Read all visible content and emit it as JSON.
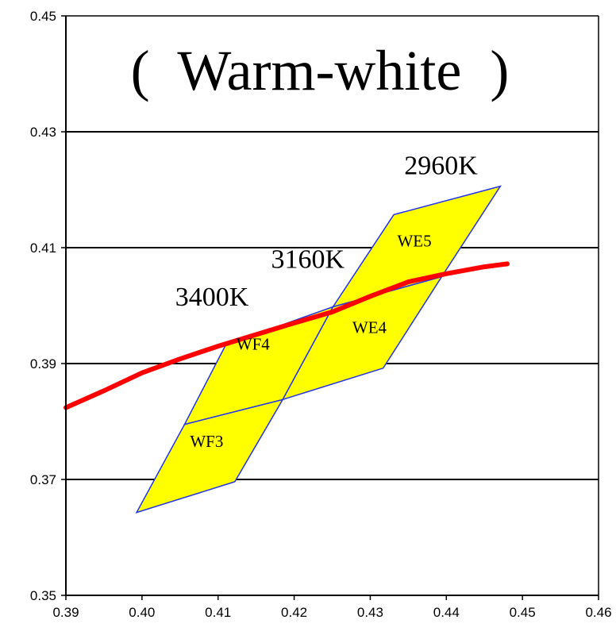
{
  "chart_data": {
    "type": "scatter",
    "title": "(  Warm-white  )",
    "xlabel": "",
    "ylabel": "",
    "xlim": [
      0.39,
      0.46
    ],
    "ylim": [
      0.35,
      0.45
    ],
    "x_ticks": [
      "0.39",
      "0.40",
      "0.41",
      "0.42",
      "0.43",
      "0.44",
      "0.45",
      "0.46"
    ],
    "y_ticks": [
      "0.45",
      "0.43",
      "0.41",
      "0.39",
      "0.37",
      "0.35"
    ],
    "y_gridlines": [
      0.37,
      0.39,
      0.41,
      0.43
    ],
    "colors": {
      "bin_fill": "#ffff00",
      "bin_edge": "#2233ee",
      "curve": "#ff0000",
      "grid": "#000000"
    },
    "bins": [
      {
        "label": "WF3",
        "label_at": [
          0.4085,
          0.3756
        ],
        "vertices": [
          [
            0.3993,
            0.3643
          ],
          [
            0.4122,
            0.3696
          ],
          [
            0.4185,
            0.3838
          ],
          [
            0.4056,
            0.3795
          ]
        ]
      },
      {
        "label": "WF4",
        "label_at": [
          0.4146,
          0.3924
        ],
        "vertices": [
          [
            0.4056,
            0.3795
          ],
          [
            0.4185,
            0.3838
          ],
          [
            0.4251,
            0.3998
          ],
          [
            0.411,
            0.3932
          ]
        ]
      },
      {
        "label": "WE4",
        "label_at": [
          0.4299,
          0.3953
        ],
        "vertices": [
          [
            0.4185,
            0.3838
          ],
          [
            0.4317,
            0.3892
          ],
          [
            0.4394,
            0.405
          ],
          [
            0.4251,
            0.3998
          ]
        ]
      },
      {
        "label": "WE5",
        "label_at": [
          0.4358,
          0.4102
        ],
        "vertices": [
          [
            0.4251,
            0.3998
          ],
          [
            0.4394,
            0.405
          ],
          [
            0.4471,
            0.4206
          ],
          [
            0.4331,
            0.4157
          ]
        ]
      }
    ],
    "planckian_locus": {
      "x": [
        0.39,
        0.395,
        0.4,
        0.405,
        0.41,
        0.415,
        0.42,
        0.425,
        0.43,
        0.435,
        0.44,
        0.445,
        0.448
      ],
      "y": [
        0.3824,
        0.3853,
        0.3884,
        0.3908,
        0.393,
        0.395,
        0.397,
        0.3989,
        0.4016,
        0.4041,
        0.4055,
        0.4067,
        0.4072
      ]
    },
    "cct_labels": [
      {
        "text": "3400K",
        "at": [
          0.4092,
          0.4
        ]
      },
      {
        "text": "3160K",
        "at": [
          0.4218,
          0.4065
        ]
      },
      {
        "text": "2960K",
        "at": [
          0.4393,
          0.4227
        ]
      }
    ]
  }
}
